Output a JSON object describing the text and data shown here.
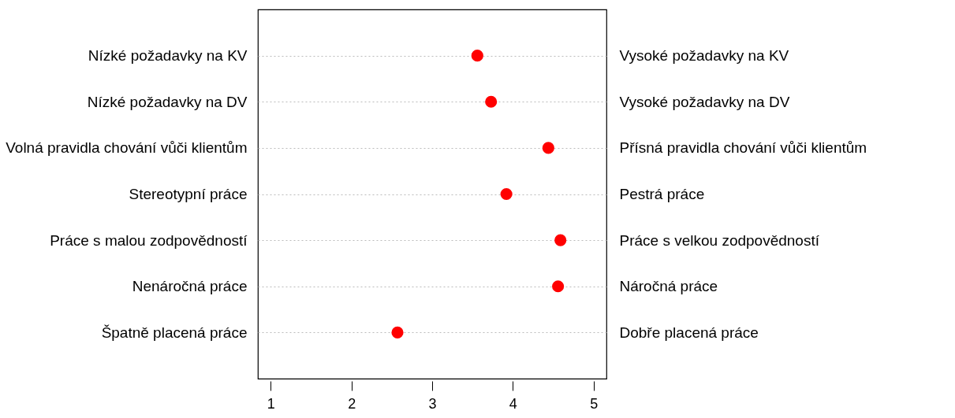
{
  "chart_data": {
    "type": "scatter",
    "orientation": "horizontal",
    "categories": [
      "Nízké požadavky na KV",
      "Nízké požadavky na DV",
      "Volná pravidla chování vůči klientům",
      "Stereotypní práce",
      "Práce s malou zodpovědností",
      "Nenáročná práce",
      "Špatně placená práce"
    ],
    "y2_categories": [
      "Vysoké požadavky na KV",
      "Vysoké požadavky na DV",
      "Přísná pravidla chování vůči klientům",
      "Pestrá práce",
      "Práce s velkou zodpovědností",
      "Náročná práce",
      "Dobře placená práce"
    ],
    "values": [
      3.56,
      3.73,
      4.44,
      3.92,
      4.59,
      4.56,
      2.57
    ],
    "color": "#ff0000",
    "marker": "circle",
    "xlim": [
      0.84,
      5.16
    ],
    "xticks": [
      1,
      2,
      3,
      4,
      5
    ],
    "grid": "y"
  }
}
